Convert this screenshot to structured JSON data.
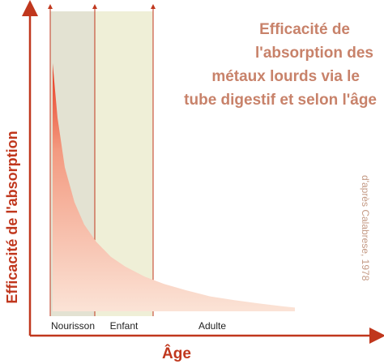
{
  "chart_data": {
    "type": "area",
    "title_lines": [
      "Efficacité de",
      "l'absorption  des",
      "métaux lourds via le",
      "tube digestif et selon l'âge"
    ],
    "xlabel": "Âge",
    "ylabel": "Efficacité de  l'absorption",
    "x_bands": [
      "Nourisson",
      "Enfant",
      "Adulte"
    ],
    "series": [
      {
        "x": [
          0,
          0.02,
          0.05,
          0.09,
          0.13,
          0.18,
          0.24,
          0.3,
          0.38,
          0.46,
          0.55,
          0.65,
          0.75,
          0.85,
          0.95,
          1.0
        ],
        "values": [
          1.0,
          0.78,
          0.58,
          0.44,
          0.35,
          0.28,
          0.22,
          0.18,
          0.14,
          0.11,
          0.085,
          0.06,
          0.045,
          0.032,
          0.02,
          0.015
        ]
      }
    ],
    "credit": "d'après Calabrese, 1978",
    "colors": {
      "curve_top": "#e8381f",
      "curve_bottom": "#fbe3d6",
      "axis": "#c0371d",
      "band_nourisson": "#e3e2d2",
      "band_enfant": "#efefd7"
    }
  }
}
